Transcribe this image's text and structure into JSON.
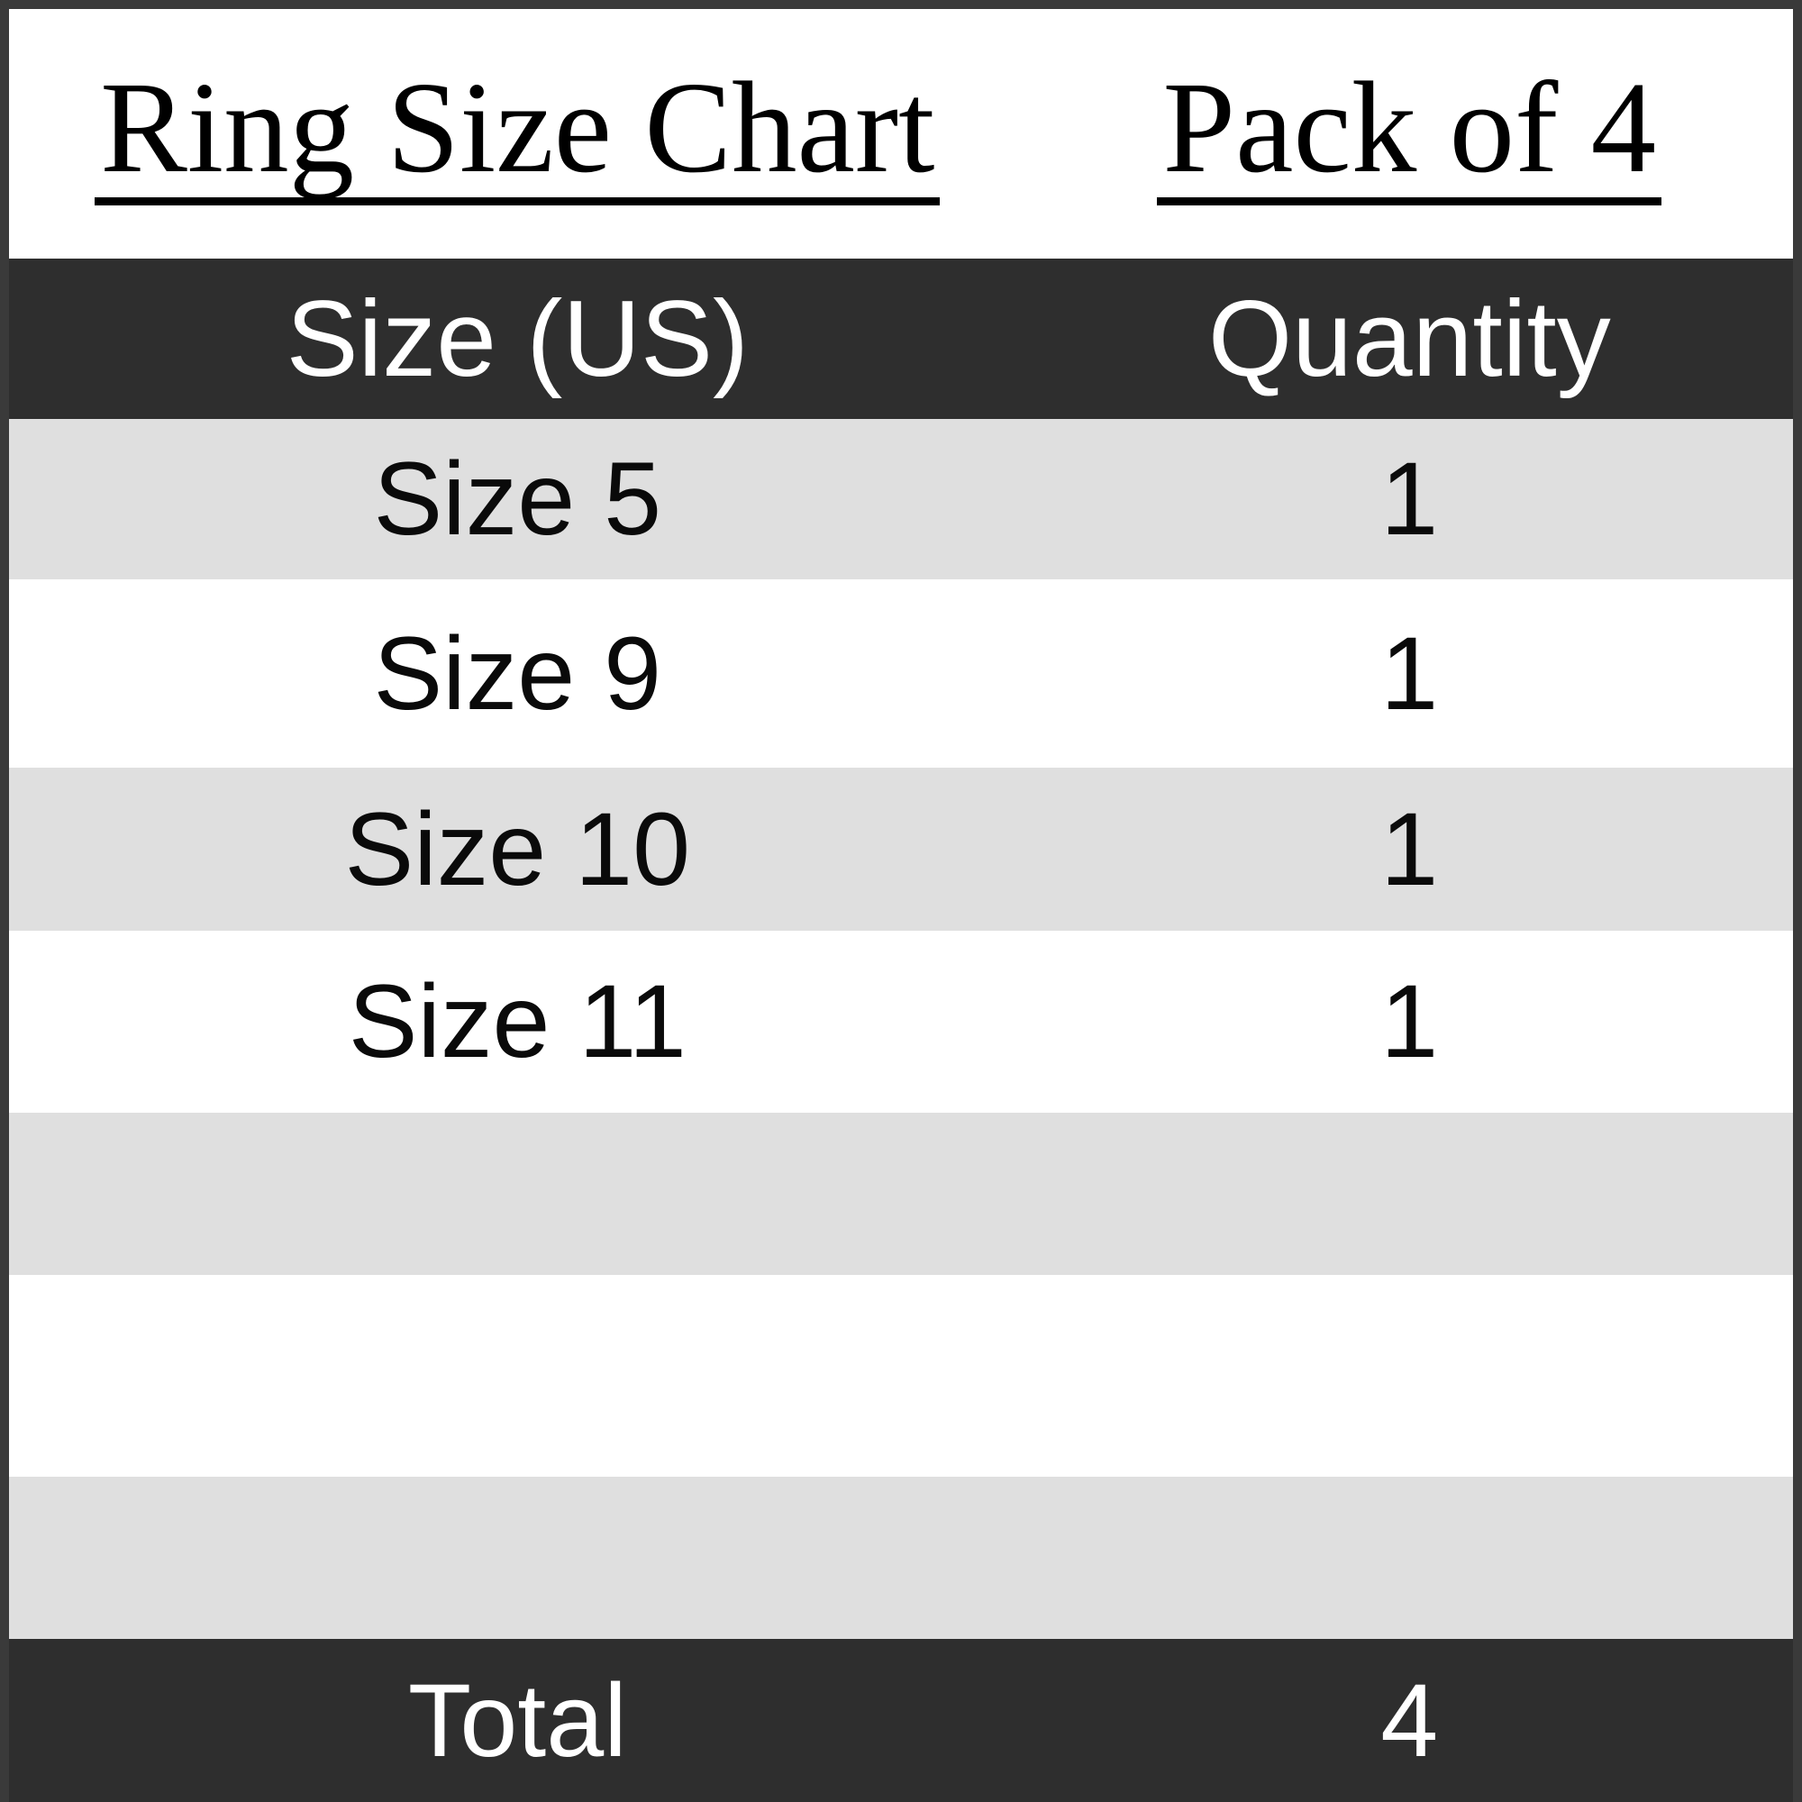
{
  "title": {
    "left": "Ring Size Chart",
    "right": "Pack of 4"
  },
  "table": {
    "headers": {
      "size": "Size (US)",
      "quantity": "Quantity"
    },
    "rows": [
      {
        "size": "Size 5",
        "qty": "1"
      },
      {
        "size": "Size 9",
        "qty": "1"
      },
      {
        "size": "Size 10",
        "qty": "1"
      },
      {
        "size": "Size 11",
        "qty": "1"
      },
      {
        "size": "",
        "qty": ""
      },
      {
        "size": "",
        "qty": ""
      },
      {
        "size": "",
        "qty": ""
      }
    ],
    "footer": {
      "label": "Total",
      "value": "4"
    }
  },
  "colors": {
    "header_bg": "#2e2e2e",
    "total_bg": "#2e2e2e",
    "alt_row_bg": "#dfdfdf",
    "row_bg": "#ffffff",
    "border": "#3a3a3a",
    "text_dark": "#0a0a0a",
    "text_light": "#ffffff"
  },
  "chart_data": {
    "type": "table",
    "title": "Ring Size Chart",
    "subtitle": "Pack of 4",
    "columns": [
      "Size (US)",
      "Quantity"
    ],
    "categories": [
      "Size 5",
      "Size 9",
      "Size 10",
      "Size 11"
    ],
    "values": [
      1,
      1,
      1,
      1
    ],
    "total_label": "Total",
    "total": 4
  }
}
